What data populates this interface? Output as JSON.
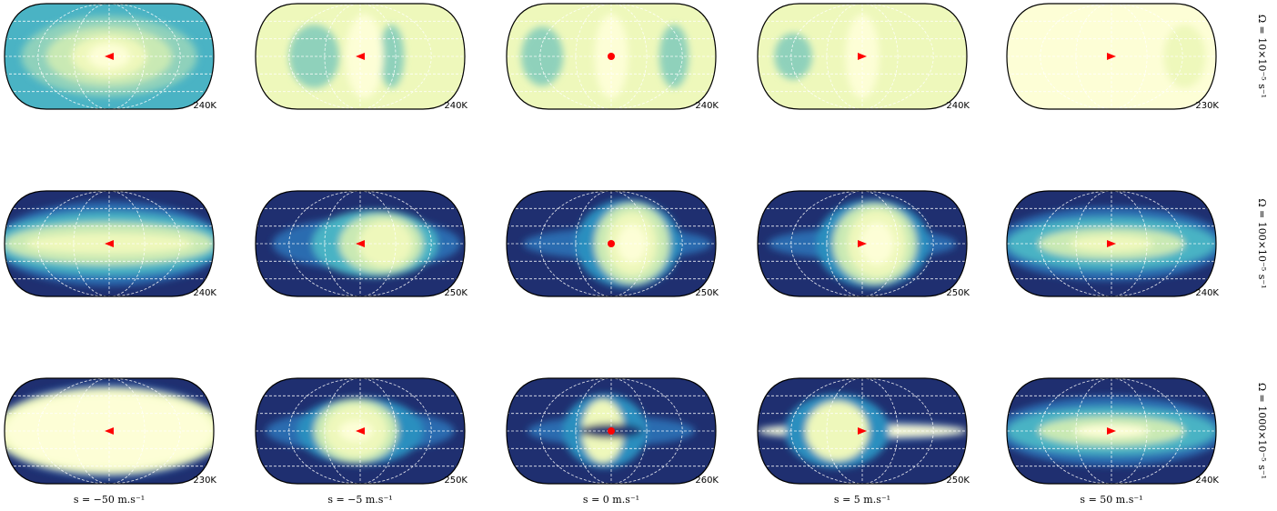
{
  "columns": [
    {
      "label": "s = −50 m.s⁻¹"
    },
    {
      "label": "s = −5 m.s⁻¹"
    },
    {
      "label": "s = 0 m.s⁻¹"
    },
    {
      "label": "s = 5 m.s⁻¹"
    },
    {
      "label": "s = 50 m.s⁻¹"
    }
  ],
  "rows": [
    {
      "label": "Ω = 10×10⁻⁵ s⁻¹",
      "panels": [
        "240K",
        "240K",
        "240K",
        "240K",
        "230K"
      ]
    },
    {
      "label": "Ω = 100×10⁻⁵ s⁻¹",
      "panels": [
        "240K",
        "250K",
        "250K",
        "250K",
        "240K"
      ]
    },
    {
      "label": "Ω = 1000×10⁻⁵ s⁻¹",
      "panels": [
        "230K",
        "250K",
        "260K",
        "250K",
        "240K"
      ]
    }
  ]
}
